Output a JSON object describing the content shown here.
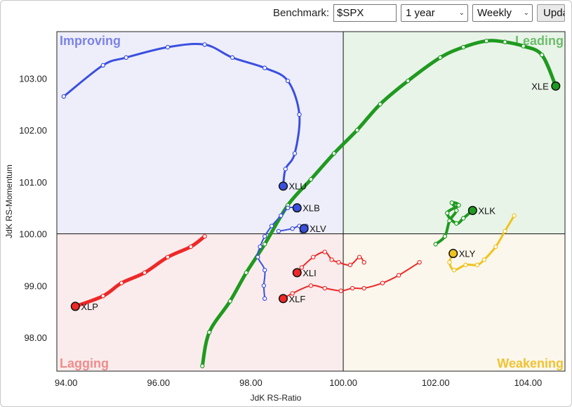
{
  "controls": {
    "benchmark_label": "Benchmark:",
    "benchmark_value": "$SPX",
    "period_value": "1 year",
    "frequency_value": "Weekly",
    "update_label": "Update"
  },
  "colors": {
    "improving_bg": "#eeeefa",
    "leading_bg": "#e9f4e9",
    "lagging_bg": "#faecec",
    "weakening_bg": "#fbf7ec",
    "improving_text": "#7b83e6",
    "leading_text": "#6dbd6d",
    "lagging_text": "#ef8c8c",
    "weakening_text": "#f0c232"
  },
  "chart_data": {
    "type": "scatter",
    "xlabel": "JdK RS-Ratio",
    "ylabel": "JdK RS-Momentum",
    "xlim": [
      93.8,
      104.8
    ],
    "ylim": [
      97.35,
      103.9
    ],
    "xticks": [
      94,
      96,
      98,
      100,
      102,
      104
    ],
    "yticks": [
      98,
      99,
      100,
      101,
      102,
      103
    ],
    "xtick_labels": [
      "94.00",
      "96.00",
      "98.00",
      "100.00",
      "102.00",
      "104.00"
    ],
    "ytick_labels": [
      "98.00",
      "99.00",
      "100.00",
      "101.00",
      "102.00",
      "103.00"
    ],
    "center": [
      100,
      100
    ],
    "quadrants": {
      "improving": "Improving",
      "leading": "Leading",
      "lagging": "Lagging",
      "weakening": "Weakening"
    },
    "series": [
      {
        "name": "XLE",
        "color": "#1f9a1f",
        "width": 5,
        "points": [
          [
            96.95,
            97.45
          ],
          [
            97.1,
            98.1
          ],
          [
            97.55,
            98.7
          ],
          [
            97.9,
            99.25
          ],
          [
            98.3,
            99.8
          ],
          [
            98.8,
            100.55
          ],
          [
            99.3,
            101.05
          ],
          [
            99.8,
            101.55
          ],
          [
            100.3,
            102.0
          ],
          [
            100.8,
            102.5
          ],
          [
            101.4,
            102.95
          ],
          [
            102.1,
            103.4
          ],
          [
            102.6,
            103.6
          ],
          [
            103.1,
            103.72
          ],
          [
            103.5,
            103.7
          ],
          [
            103.9,
            103.62
          ],
          [
            104.3,
            103.45
          ],
          [
            104.6,
            102.85
          ]
        ]
      },
      {
        "name": "XLU",
        "color": "#3a4fe0",
        "width": 3,
        "points": [
          [
            93.95,
            102.65
          ],
          [
            94.8,
            103.25
          ],
          [
            95.3,
            103.4
          ],
          [
            96.2,
            103.6
          ],
          [
            97.0,
            103.65
          ],
          [
            97.6,
            103.4
          ],
          [
            98.3,
            103.2
          ],
          [
            98.8,
            102.95
          ],
          [
            99.05,
            102.3
          ],
          [
            98.95,
            101.55
          ],
          [
            98.75,
            101.25
          ],
          [
            98.7,
            100.92
          ]
        ]
      },
      {
        "name": "XLB",
        "color": "#3a4fe0",
        "width": 2,
        "points": [
          [
            98.3,
            98.75
          ],
          [
            98.28,
            99.0
          ],
          [
            98.3,
            99.3
          ],
          [
            98.15,
            99.55
          ],
          [
            98.2,
            99.75
          ],
          [
            98.3,
            99.95
          ],
          [
            98.45,
            100.15
          ],
          [
            98.65,
            100.35
          ],
          [
            98.8,
            100.5
          ],
          [
            99.0,
            100.5
          ]
        ]
      },
      {
        "name": "XLV",
        "color": "#3a4fe0",
        "width": 2,
        "points": [
          [
            98.6,
            100.05
          ],
          [
            98.9,
            100.1
          ],
          [
            99.05,
            100.15
          ],
          [
            99.1,
            100.05
          ],
          [
            99.2,
            100.15
          ],
          [
            99.15,
            100.1
          ]
        ]
      },
      {
        "name": "XLK",
        "color": "#1f9a1f",
        "width": 4,
        "points": [
          [
            102.0,
            99.8
          ],
          [
            102.2,
            99.95
          ],
          [
            102.3,
            100.25
          ],
          [
            102.45,
            100.45
          ],
          [
            102.35,
            100.6
          ],
          [
            102.5,
            100.55
          ],
          [
            102.25,
            100.4
          ],
          [
            102.45,
            100.2
          ],
          [
            102.6,
            100.3
          ],
          [
            102.8,
            100.45
          ]
        ]
      },
      {
        "name": "XLY",
        "color": "#f0c21e",
        "width": 3,
        "points": [
          [
            103.7,
            100.35
          ],
          [
            103.5,
            100.05
          ],
          [
            103.3,
            99.75
          ],
          [
            103.05,
            99.5
          ],
          [
            102.9,
            99.4
          ],
          [
            102.65,
            99.4
          ],
          [
            102.4,
            99.3
          ],
          [
            102.3,
            99.45
          ],
          [
            102.38,
            99.62
          ]
        ]
      },
      {
        "name": "XLI",
        "color": "#ee2828",
        "width": 2,
        "points": [
          [
            100.45,
            99.45
          ],
          [
            100.35,
            99.55
          ],
          [
            100.15,
            99.4
          ],
          [
            99.9,
            99.45
          ],
          [
            99.75,
            99.5
          ],
          [
            99.6,
            99.65
          ],
          [
            99.35,
            99.55
          ],
          [
            99.1,
            99.35
          ],
          [
            99.0,
            99.25
          ]
        ]
      },
      {
        "name": "XLF",
        "color": "#ee2828",
        "width": 2,
        "points": [
          [
            101.65,
            99.45
          ],
          [
            101.2,
            99.2
          ],
          [
            100.85,
            99.05
          ],
          [
            100.45,
            98.95
          ],
          [
            100.2,
            98.95
          ],
          [
            99.95,
            98.9
          ],
          [
            99.6,
            98.95
          ],
          [
            99.3,
            99.0
          ],
          [
            98.9,
            98.85
          ],
          [
            98.7,
            98.75
          ]
        ]
      },
      {
        "name": "XLP",
        "color": "#ee2828",
        "width": 5,
        "points": [
          [
            97.0,
            99.95
          ],
          [
            96.7,
            99.75
          ],
          [
            96.2,
            99.55
          ],
          [
            95.7,
            99.25
          ],
          [
            95.2,
            99.05
          ],
          [
            94.8,
            98.8
          ],
          [
            94.2,
            98.6
          ]
        ]
      }
    ]
  }
}
